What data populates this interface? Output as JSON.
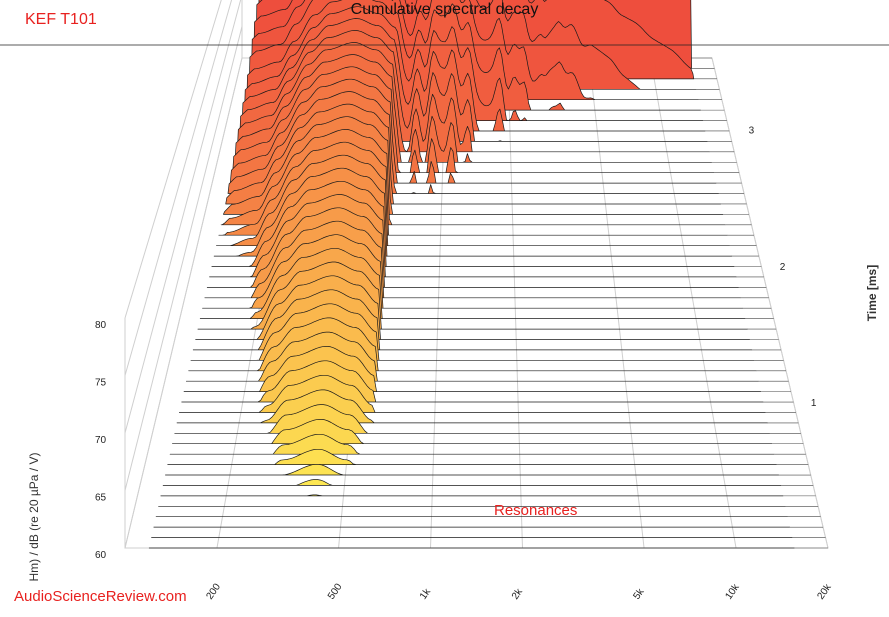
{
  "header": {
    "brand": "KEF T101",
    "title": "Cumulative spectral decay"
  },
  "footer": {
    "watermark": "AudioScienceReview.com"
  },
  "chart_data": {
    "type": "waterfall",
    "title": "Cumulative spectral decay",
    "xlabel": "",
    "ylabel": "Hm) / dB (re 20 µPa / V)",
    "zlabel": "Time [ms]",
    "x_scale": "log",
    "xlim": [
      100,
      20000
    ],
    "ylim": [
      60,
      80
    ],
    "zlim": [
      0,
      3.6
    ],
    "x_ticks": [
      "200",
      "500",
      "1k",
      "2k",
      "5k",
      "10k",
      "20k"
    ],
    "x_tick_values": [
      200,
      500,
      1000,
      2000,
      5000,
      10000,
      20000
    ],
    "y_ticks": [
      "60",
      "65",
      "70",
      "75",
      "80"
    ],
    "y_tick_values": [
      60,
      65,
      70,
      75,
      80
    ],
    "z_ticks": [
      "1",
      "2",
      "3"
    ],
    "z_tick_values": [
      1,
      2,
      3
    ],
    "slices": 48,
    "slice_step_ms": 0.075,
    "initial_response": {
      "freq_hz": [
        130,
        170,
        200,
        250,
        300,
        400,
        500,
        600,
        700,
        800,
        900,
        1000,
        1200,
        1500,
        1800,
        2000,
        2300,
        2500,
        2800,
        3000,
        3500,
        4000,
        4500,
        5000,
        6000,
        7000,
        8000,
        10000,
        12000,
        15000
      ],
      "db": [
        72,
        73,
        76,
        80,
        82,
        83,
        82,
        80,
        77,
        80,
        83,
        86,
        85,
        82,
        84,
        81,
        83,
        80,
        82,
        80,
        84,
        87,
        85,
        86,
        86,
        85,
        85,
        84,
        84,
        83
      ]
    },
    "resonance_peaks_hz": [
      600,
      750,
      900,
      1100,
      1300,
      1800,
      2100,
      2400,
      3000,
      3200,
      3500
    ],
    "annotation": "Resonances",
    "colors": {
      "early": "#ee4a3c",
      "mid": "#f8a14a",
      "late": "#ffff55"
    }
  }
}
